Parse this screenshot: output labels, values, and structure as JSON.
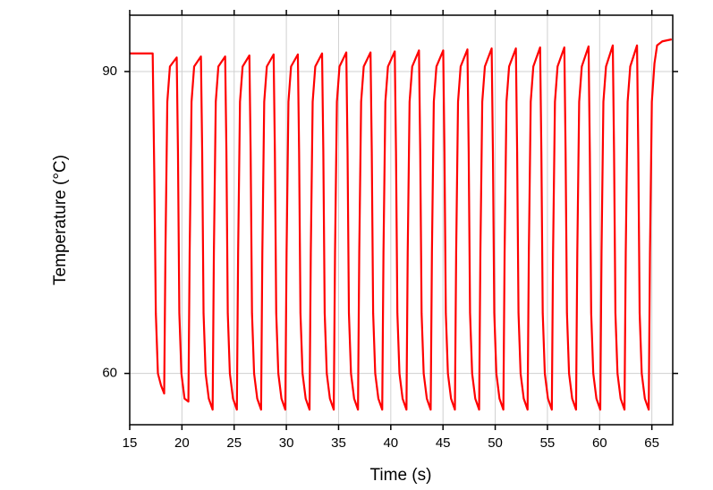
{
  "chart_data": {
    "type": "line",
    "xlabel": "Time (s)",
    "ylabel": "Temperature (°C)",
    "xlim": [
      15,
      67
    ],
    "ylim": [
      54.9,
      95.6
    ],
    "xticks": [
      15,
      20,
      25,
      30,
      35,
      40,
      45,
      50,
      55,
      60,
      65
    ],
    "yticks": [
      60,
      90
    ],
    "grid": true,
    "series": [
      {
        "color": "#ff0000",
        "x": [
          15,
          17.2,
          17.35,
          17.5,
          17.7,
          18.0,
          18.3,
          18.42,
          18.6,
          18.85,
          19.5,
          19.62,
          19.75,
          19.95,
          20.25,
          20.62,
          20.74,
          20.92,
          21.17,
          21.82,
          21.94,
          22.07,
          22.27,
          22.57,
          22.94,
          23.06,
          23.24,
          23.49,
          24.14,
          24.26,
          24.39,
          24.59,
          24.89,
          25.26,
          25.38,
          25.56,
          25.81,
          26.46,
          26.58,
          26.71,
          26.91,
          27.21,
          27.58,
          27.7,
          27.88,
          28.13,
          28.78,
          28.9,
          29.03,
          29.23,
          29.53,
          29.9,
          30.02,
          30.2,
          30.45,
          31.1,
          31.22,
          31.35,
          31.55,
          31.85,
          32.22,
          32.34,
          32.52,
          32.77,
          33.42,
          33.54,
          33.67,
          33.87,
          34.17,
          34.54,
          34.66,
          34.84,
          35.09,
          35.74,
          35.86,
          35.99,
          36.19,
          36.49,
          36.86,
          36.98,
          37.16,
          37.41,
          38.06,
          38.18,
          38.31,
          38.51,
          38.81,
          39.18,
          39.3,
          39.48,
          39.73,
          40.38,
          40.5,
          40.63,
          40.83,
          41.13,
          41.5,
          41.62,
          41.8,
          42.05,
          42.7,
          42.82,
          42.95,
          43.15,
          43.45,
          43.82,
          43.94,
          44.12,
          44.37,
          45.02,
          45.14,
          45.27,
          45.47,
          45.77,
          46.14,
          46.26,
          46.44,
          46.69,
          47.34,
          47.46,
          47.59,
          47.79,
          48.09,
          48.46,
          48.58,
          48.76,
          49.01,
          49.66,
          49.78,
          49.91,
          50.11,
          50.41,
          50.78,
          50.9,
          51.08,
          51.33,
          51.98,
          52.1,
          52.23,
          52.43,
          52.73,
          53.1,
          53.22,
          53.4,
          53.65,
          54.3,
          54.42,
          54.55,
          54.75,
          55.05,
          55.42,
          55.54,
          55.72,
          55.97,
          56.62,
          56.74,
          56.87,
          57.07,
          57.37,
          57.74,
          57.86,
          58.04,
          58.29,
          58.94,
          59.06,
          59.19,
          59.39,
          59.69,
          60.06,
          60.18,
          60.36,
          60.61,
          61.26,
          61.38,
          61.51,
          61.71,
          62.01,
          62.38,
          62.5,
          62.68,
          62.93,
          63.58,
          63.7,
          63.83,
          64.03,
          64.33,
          64.7,
          64.82,
          65.0,
          65.25,
          65.5,
          66.0,
          66.9
        ],
        "values": [
          91.8,
          91.8,
          80,
          66,
          60,
          58.8,
          58.0,
          72,
          87,
          90.5,
          91.4,
          82,
          66,
          60,
          57.5,
          57.2,
          72,
          87,
          90.5,
          91.5,
          82,
          66,
          60,
          57.5,
          56.4,
          72,
          87,
          90.5,
          91.5,
          82,
          66,
          60,
          57.5,
          56.4,
          72,
          87,
          90.5,
          91.6,
          82,
          66,
          60,
          57.5,
          56.4,
          72,
          87,
          90.5,
          91.7,
          82,
          66,
          60,
          57.5,
          56.4,
          72,
          87,
          90.5,
          91.7,
          82,
          66,
          60,
          57.5,
          56.4,
          72,
          87,
          90.5,
          91.8,
          82,
          66,
          60,
          57.5,
          56.4,
          72,
          87,
          90.5,
          91.9,
          82,
          66,
          60,
          57.5,
          56.4,
          72,
          87,
          90.5,
          91.9,
          82,
          66,
          60,
          57.5,
          56.4,
          72,
          87,
          90.5,
          92.0,
          82,
          66,
          60,
          57.5,
          56.4,
          72,
          87,
          90.5,
          92.1,
          82,
          66,
          60,
          57.5,
          56.4,
          72,
          87,
          90.5,
          92.1,
          82,
          66,
          60,
          57.5,
          56.4,
          72,
          87,
          90.5,
          92.2,
          82,
          66,
          60,
          57.5,
          56.4,
          72,
          87,
          90.5,
          92.3,
          82,
          66,
          60,
          57.5,
          56.4,
          72,
          87,
          90.5,
          92.3,
          82,
          66,
          60,
          57.5,
          56.4,
          72,
          87,
          90.5,
          92.4,
          82,
          66,
          60,
          57.5,
          56.4,
          72,
          87,
          90.5,
          92.4,
          82,
          66,
          60,
          57.5,
          56.4,
          72,
          87,
          90.5,
          92.5,
          82,
          66,
          60,
          57.5,
          56.4,
          72,
          87,
          90.5,
          92.6,
          82,
          66,
          60,
          57.5,
          56.4,
          72,
          87,
          90.5,
          92.6,
          82,
          66,
          60,
          57.5,
          56.4,
          72,
          87,
          90.8,
          92.6,
          93.0,
          93.2
        ]
      }
    ]
  }
}
